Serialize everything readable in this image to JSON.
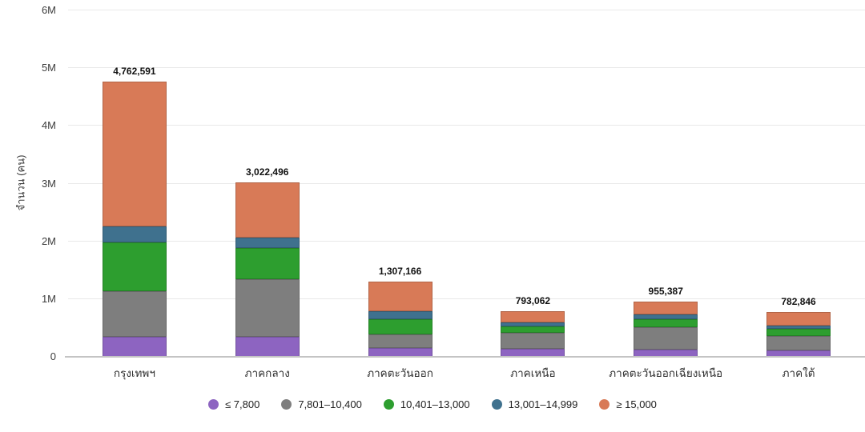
{
  "chart_data": {
    "type": "bar",
    "stacked": true,
    "title": "",
    "xlabel": "",
    "ylabel": "จำนวน (คน)",
    "categories": [
      "กรุงเทพฯ",
      "ภาคกลาง",
      "ภาคตะวันออก",
      "ภาคเหนือ",
      "ภาคตะวันออกเฉียงเหนือ",
      "ภาคใต้"
    ],
    "totals": [
      4762591,
      3022496,
      1307166,
      793062,
      955387,
      782846
    ],
    "total_labels": [
      "4,762,591",
      "3,022,496",
      "1,307,166",
      "793,062",
      "955,387",
      "782,846"
    ],
    "series": [
      {
        "name": "≤ 7,800",
        "color": "#8d64c1",
        "values": [
          350000,
          340000,
          148000,
          134000,
          127000,
          117000
        ]
      },
      {
        "name": "7,801–10,400",
        "color": "#7e7e7e",
        "values": [
          790000,
          1000000,
          247000,
          277000,
          380000,
          250000
        ]
      },
      {
        "name": "10,401–13,000",
        "color": "#2d9e2f",
        "values": [
          840000,
          540000,
          262000,
          115000,
          140000,
          120000
        ]
      },
      {
        "name": "13,001–14,999",
        "color": "#3f718e",
        "values": [
          280000,
          190000,
          138000,
          70000,
          83000,
          55000
        ]
      },
      {
        "name": "≥ 15,000",
        "color": "#d87a57",
        "values": [
          2502591,
          952496,
          512166,
          197062,
          225387,
          240846
        ]
      }
    ],
    "ylim": [
      0,
      6000000
    ],
    "yticks": [
      {
        "value": 0,
        "label": "0"
      },
      {
        "value": 1000000,
        "label": "1M"
      },
      {
        "value": 2000000,
        "label": "2M"
      },
      {
        "value": 3000000,
        "label": "3M"
      },
      {
        "value": 4000000,
        "label": "4M"
      },
      {
        "value": 5000000,
        "label": "5M"
      },
      {
        "value": 6000000,
        "label": "6M"
      }
    ],
    "grid": true,
    "legend_position": "bottom"
  }
}
